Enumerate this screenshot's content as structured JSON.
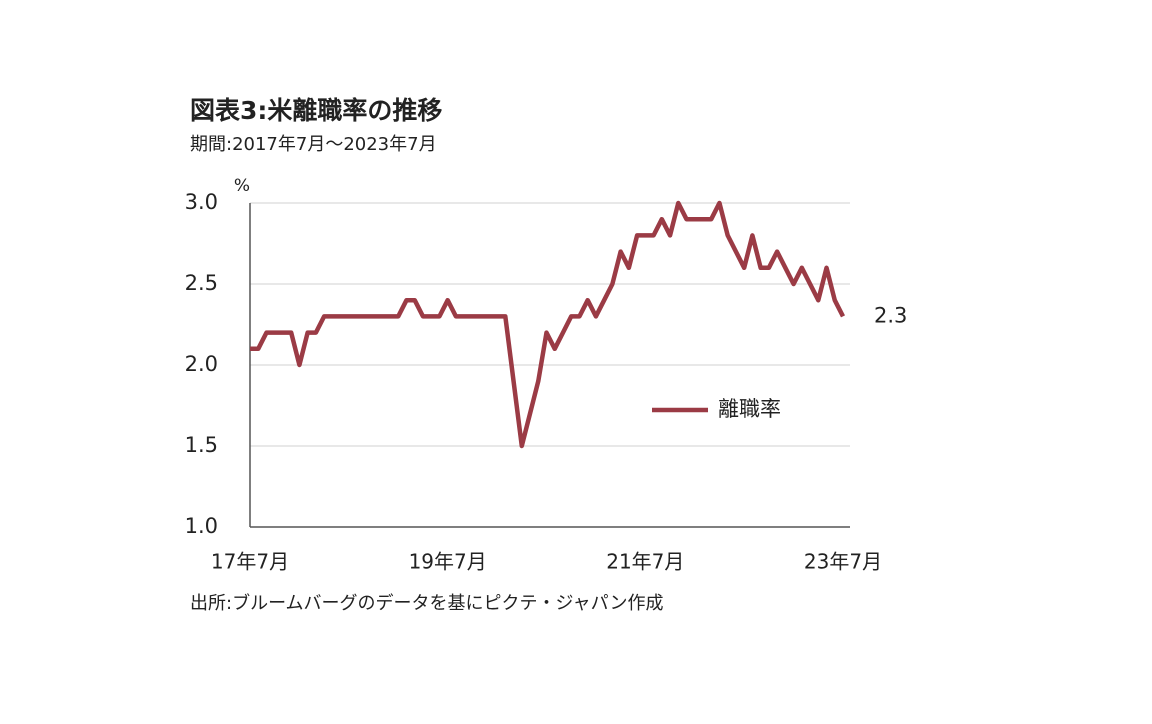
{
  "chart_data": {
    "type": "line",
    "title": "図表3:米離職率の推移",
    "subtitle": "期間:2017年7月～2023年7月",
    "y_label": "%",
    "source": "出所:ブルームバーグのデータを基にピクテ・ジャパン作成",
    "categories": [
      "17年7月",
      null,
      null,
      null,
      null,
      null,
      null,
      null,
      null,
      null,
      null,
      null,
      null,
      null,
      null,
      null,
      null,
      null,
      null,
      null,
      null,
      null,
      null,
      null,
      "19年7月",
      null,
      null,
      null,
      null,
      null,
      null,
      null,
      null,
      null,
      null,
      null,
      null,
      null,
      null,
      null,
      null,
      null,
      null,
      null,
      null,
      null,
      null,
      null,
      "21年7月",
      null,
      null,
      null,
      null,
      null,
      null,
      null,
      null,
      null,
      null,
      null,
      null,
      null,
      null,
      null,
      null,
      null,
      null,
      null,
      null,
      null,
      null,
      null,
      "23年7月"
    ],
    "series": [
      {
        "name": "離職率",
        "color": "#9b3b45",
        "values": [
          2.1,
          2.1,
          2.2,
          2.2,
          2.2,
          2.2,
          2.0,
          2.2,
          2.2,
          2.3,
          2.3,
          2.3,
          2.3,
          2.3,
          2.3,
          2.3,
          2.3,
          2.3,
          2.3,
          2.4,
          2.4,
          2.3,
          2.3,
          2.3,
          2.4,
          2.3,
          2.3,
          2.3,
          2.3,
          2.3,
          2.3,
          2.3,
          1.9,
          1.5,
          1.7,
          1.9,
          2.2,
          2.1,
          2.2,
          2.3,
          2.3,
          2.4,
          2.3,
          2.4,
          2.5,
          2.7,
          2.6,
          2.8,
          2.8,
          2.8,
          2.9,
          2.8,
          3.0,
          2.9,
          2.9,
          2.9,
          2.9,
          3.0,
          2.8,
          2.7,
          2.6,
          2.8,
          2.6,
          2.6,
          2.7,
          2.6,
          2.5,
          2.6,
          2.5,
          2.4,
          2.6,
          2.4,
          2.3
        ]
      }
    ],
    "ylim": [
      1.0,
      3.0
    ],
    "yticks": [
      {
        "value": 1.0,
        "label": "1.0"
      },
      1.5,
      {
        "value": 2.0,
        "label": "2.0"
      },
      2.5,
      {
        "value": 3.0,
        "label": "3.0"
      }
    ],
    "grid": true
  }
}
